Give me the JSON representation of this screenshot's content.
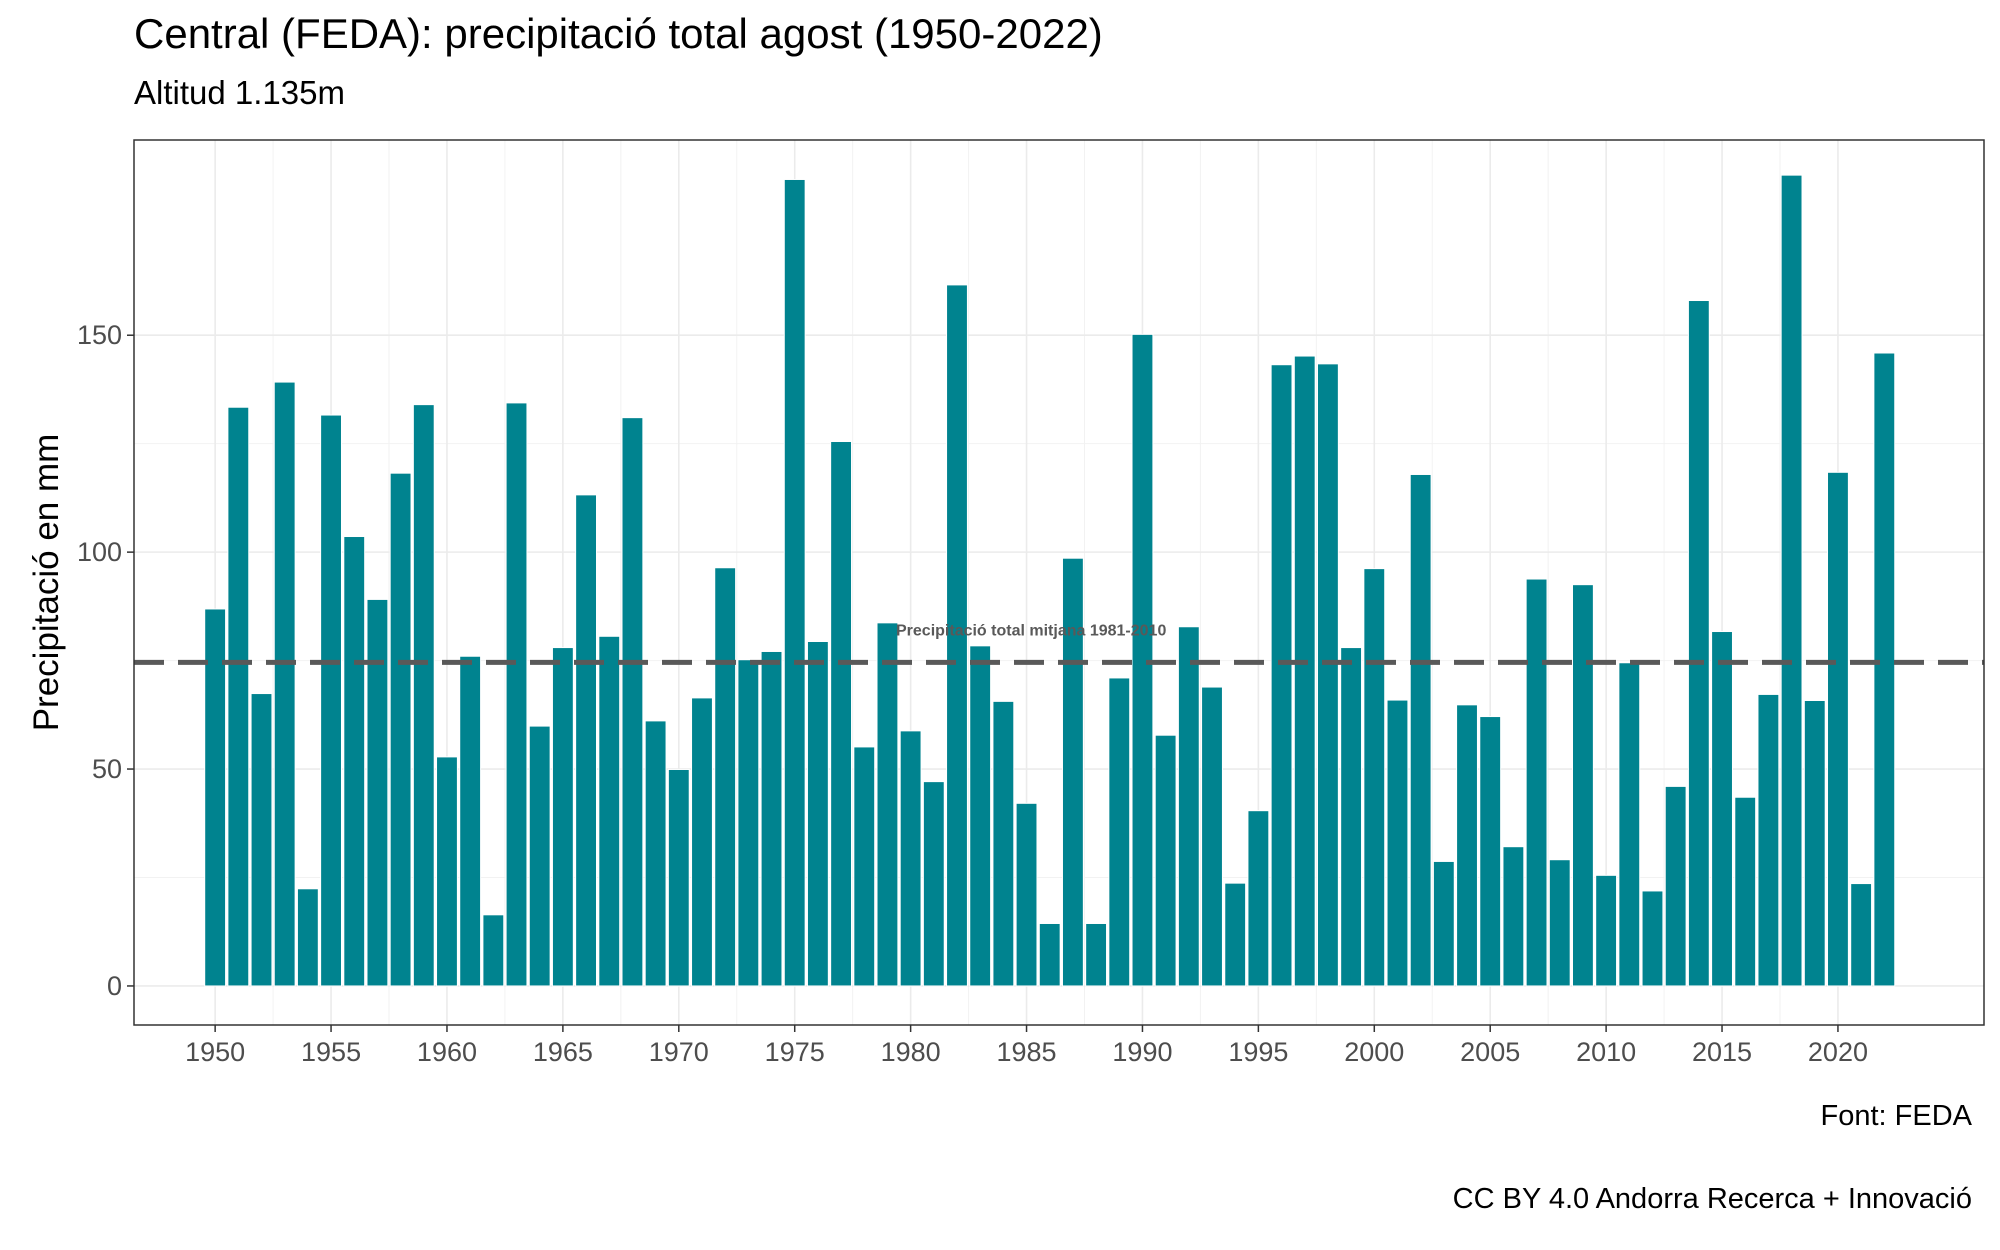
{
  "chart_data": {
    "type": "bar",
    "title": "Central (FEDA): precipitació total agost (1950-2022)",
    "subtitle": "Altitud 1.135m",
    "ylabel": "Precipitació en mm",
    "xlabel": "",
    "ylim": [
      -9,
      195
    ],
    "xlim": [
      1946.5,
      2026.3
    ],
    "y_ticks": [
      0,
      50,
      100,
      150
    ],
    "x_ticks": [
      1950,
      1955,
      1960,
      1965,
      1970,
      1975,
      1980,
      1985,
      1990,
      1995,
      2000,
      2005,
      2010,
      2015,
      2020
    ],
    "grid": true,
    "bar_color": "#00838F",
    "categories": [
      1950,
      1951,
      1952,
      1953,
      1954,
      1955,
      1956,
      1957,
      1958,
      1959,
      1960,
      1961,
      1962,
      1963,
      1964,
      1965,
      1966,
      1967,
      1968,
      1969,
      1970,
      1971,
      1972,
      1973,
      1974,
      1975,
      1976,
      1977,
      1978,
      1979,
      1980,
      1981,
      1982,
      1983,
      1984,
      1985,
      1986,
      1987,
      1988,
      1989,
      1990,
      1991,
      1992,
      1993,
      1994,
      1995,
      1996,
      1997,
      1998,
      1999,
      2000,
      2001,
      2002,
      2003,
      2004,
      2005,
      2006,
      2007,
      2008,
      2009,
      2010,
      2011,
      2012,
      2013,
      2014,
      2015,
      2016,
      2017,
      2018,
      2019,
      2020,
      2021,
      2022
    ],
    "values": [
      86.9,
      133.4,
      67.4,
      139.2,
      22.4,
      131.6,
      103.6,
      89.1,
      118.2,
      134.0,
      52.8,
      76.0,
      16.4,
      134.4,
      59.9,
      78.0,
      113.2,
      80.6,
      131.0,
      61.1,
      49.9,
      66.4,
      96.4,
      75.2,
      77.1,
      185.9,
      79.4,
      125.5,
      55.1,
      83.7,
      58.8,
      47.1,
      161.6,
      78.4,
      65.6,
      42.1,
      14.4,
      98.6,
      14.4,
      71.0,
      150.2,
      57.8,
      82.8,
      68.9,
      23.7,
      40.4,
      143.2,
      145.2,
      143.4,
      78.0,
      96.2,
      65.9,
      117.9,
      28.7,
      64.8,
      62.1,
      32.1,
      93.8,
      29.1,
      92.5,
      25.5,
      74.5,
      21.9,
      46.0,
      158.0,
      81.7,
      43.5,
      67.2,
      186.9,
      65.8,
      118.4,
      23.6,
      145.9
    ],
    "reference_line": {
      "value": 74.6,
      "label": "Precipitació total mitjana 1981-2010",
      "color": "#595959"
    },
    "caption_source": "Font: FEDA",
    "caption_license": "CC BY 4.0 Andorra Recerca + Innovació"
  }
}
